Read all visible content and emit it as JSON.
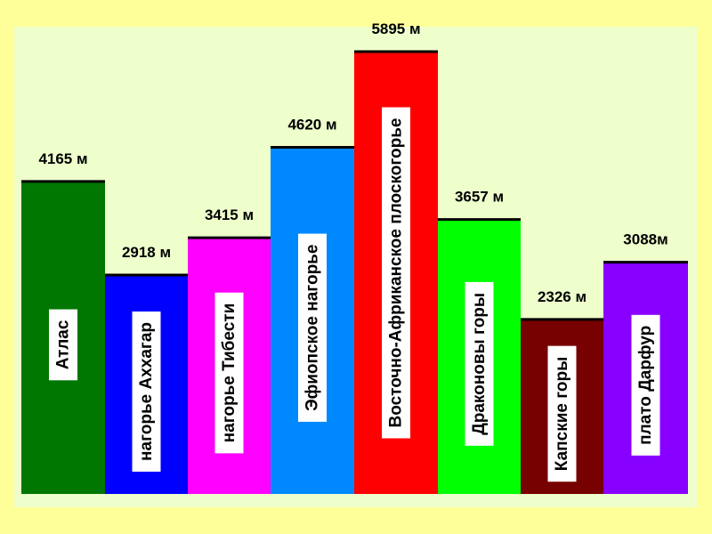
{
  "colors": {
    "outer_background": "#FFFF99",
    "plot_background": "#EEFFCC",
    "label_box": "#FFFFFF",
    "bar_top_line": "#000000"
  },
  "chart_data": {
    "type": "bar",
    "title": "",
    "xlabel": "",
    "ylabel": "",
    "ylim": [
      0,
      5895
    ],
    "grid": false,
    "legend": "none",
    "categories": [
      "Атлас",
      "нагорье  Аххагар",
      "нагорье  Тибести",
      "Эфиопское  нагорье",
      "Восточно-Африканское  плоскогорье",
      "Драконовы  горы",
      "Капские  горы",
      "плато  Дарфур"
    ],
    "values": [
      4165,
      2918,
      3415,
      4620,
      5895,
      3657,
      2326,
      3088
    ],
    "value_labels": [
      "4165 м",
      "2918 м",
      "3415 м",
      "4620 м",
      "5895 м",
      "3657 м",
      "2326 м",
      "3088м"
    ],
    "colors": [
      "#007700",
      "#0000FF",
      "#FF00FF",
      "#0088FF",
      "#FF0000",
      "#00FF00",
      "#770000",
      "#8800FF"
    ]
  }
}
